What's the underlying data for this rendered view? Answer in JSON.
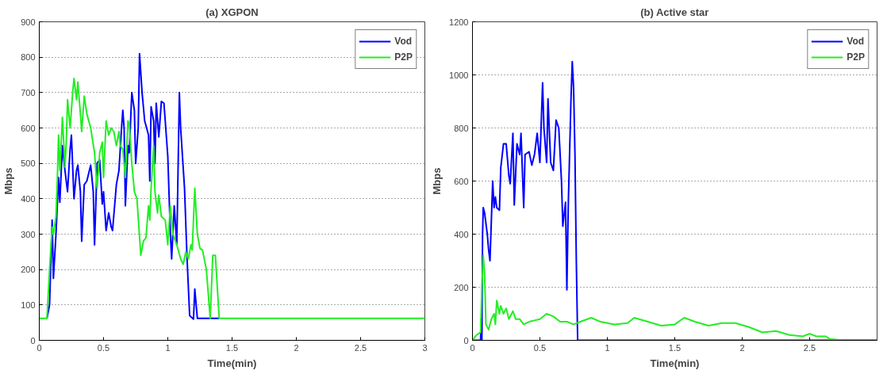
{
  "chart_data": [
    {
      "type": "line",
      "title": "(a) XGPON",
      "xlabel": "Time(min)",
      "ylabel": "Mbps",
      "xlim": [
        0,
        3
      ],
      "ylim": [
        0,
        900
      ],
      "xticks": [
        0,
        0.5,
        1,
        1.5,
        2,
        2.5,
        3
      ],
      "yticks": [
        0,
        100,
        200,
        300,
        400,
        500,
        600,
        700,
        800,
        900
      ],
      "grid": "y",
      "legend": "top right",
      "series": [
        {
          "name": "Vod",
          "color": "#0000ff",
          "x": [
            0.06,
            0.08,
            0.1,
            0.11,
            0.13,
            0.15,
            0.16,
            0.18,
            0.2,
            0.22,
            0.24,
            0.25,
            0.27,
            0.29,
            0.3,
            0.32,
            0.33,
            0.35,
            0.37,
            0.4,
            0.42,
            0.43,
            0.45,
            0.47,
            0.49,
            0.5,
            0.52,
            0.54,
            0.56,
            0.57,
            0.6,
            0.62,
            0.64,
            0.65,
            0.66,
            0.67,
            0.69,
            0.7,
            0.72,
            0.74,
            0.75,
            0.77,
            0.78,
            0.8,
            0.82,
            0.85,
            0.86,
            0.87,
            0.89,
            0.9,
            0.91,
            0.93,
            0.95,
            0.97,
            1.0,
            1.02,
            1.03,
            1.05,
            1.07,
            1.09,
            1.1,
            1.13,
            1.15,
            1.17,
            1.2,
            1.21,
            1.23,
            1.4
          ],
          "values": [
            62,
            100,
            340,
            175,
            300,
            460,
            390,
            550,
            480,
            420,
            540,
            580,
            400,
            480,
            495,
            420,
            280,
            440,
            450,
            495,
            420,
            270,
            500,
            510,
            385,
            420,
            310,
            360,
            320,
            310,
            440,
            480,
            600,
            650,
            600,
            380,
            550,
            530,
            700,
            650,
            500,
            600,
            810,
            700,
            620,
            580,
            450,
            660,
            620,
            500,
            670,
            575,
            675,
            670,
            520,
            300,
            230,
            380,
            270,
            700,
            600,
            430,
            230,
            70,
            60,
            145,
            62,
            62
          ]
        },
        {
          "name": "P2P",
          "color": "#22ee22",
          "x": [
            0,
            0.06,
            0.08,
            0.1,
            0.11,
            0.13,
            0.14,
            0.15,
            0.16,
            0.18,
            0.2,
            0.21,
            0.22,
            0.24,
            0.26,
            0.27,
            0.29,
            0.3,
            0.32,
            0.33,
            0.35,
            0.37,
            0.4,
            0.43,
            0.45,
            0.47,
            0.49,
            0.5,
            0.52,
            0.54,
            0.56,
            0.58,
            0.6,
            0.62,
            0.63,
            0.65,
            0.67,
            0.69,
            0.7,
            0.72,
            0.74,
            0.76,
            0.79,
            0.81,
            0.83,
            0.85,
            0.86,
            0.87,
            0.89,
            0.9,
            0.92,
            0.93,
            0.95,
            0.98,
            1.0,
            1.02,
            1.04,
            1.07,
            1.1,
            1.12,
            1.14,
            1.16,
            1.18,
            1.19,
            1.21,
            1.23,
            1.25,
            1.27,
            1.3,
            1.33,
            1.35,
            1.37,
            1.4,
            3
          ],
          "values": [
            62,
            62,
            200,
            320,
            300,
            350,
            450,
            580,
            480,
            630,
            490,
            560,
            680,
            600,
            700,
            740,
            680,
            730,
            640,
            590,
            690,
            640,
            600,
            530,
            430,
            530,
            560,
            460,
            620,
            580,
            600,
            590,
            550,
            590,
            550,
            540,
            460,
            620,
            610,
            500,
            420,
            400,
            240,
            280,
            290,
            380,
            340,
            430,
            550,
            420,
            360,
            410,
            350,
            340,
            270,
            380,
            300,
            270,
            230,
            215,
            250,
            230,
            270,
            255,
            430,
            300,
            260,
            255,
            200,
            62,
            240,
            240,
            62,
            62
          ]
        }
      ]
    },
    {
      "type": "line",
      "title": "(b) Active star",
      "xlabel": "Time(min)",
      "ylabel": "Mbps",
      "xlim": [
        0,
        3
      ],
      "ylim": [
        0,
        1200
      ],
      "xticks": [
        0,
        0.5,
        1,
        1.5,
        2,
        2.5
      ],
      "yticks": [
        0,
        200,
        400,
        600,
        800,
        1000,
        1200
      ],
      "grid": "y",
      "legend": "top right",
      "series": [
        {
          "name": "Vod",
          "color": "#0000ff",
          "x": [
            0,
            0.06,
            0.065,
            0.07,
            0.075,
            0.08,
            0.09,
            0.11,
            0.12,
            0.13,
            0.14,
            0.15,
            0.16,
            0.17,
            0.18,
            0.2,
            0.21,
            0.23,
            0.25,
            0.27,
            0.28,
            0.3,
            0.31,
            0.33,
            0.35,
            0.36,
            0.38,
            0.39,
            0.42,
            0.44,
            0.46,
            0.48,
            0.5,
            0.52,
            0.53,
            0.55,
            0.56,
            0.58,
            0.6,
            0.62,
            0.64,
            0.66,
            0.67,
            0.69,
            0.7,
            0.71,
            0.73,
            0.74,
            0.75,
            0.76,
            0.77,
            0.78,
            3
          ],
          "values": [
            0,
            0,
            80,
            0,
            400,
            500,
            480,
            400,
            340,
            300,
            450,
            600,
            500,
            540,
            500,
            490,
            650,
            740,
            740,
            620,
            590,
            780,
            510,
            740,
            700,
            780,
            500,
            700,
            710,
            660,
            700,
            780,
            670,
            970,
            800,
            670,
            910,
            670,
            640,
            830,
            800,
            600,
            430,
            520,
            190,
            500,
            900,
            1050,
            950,
            700,
            300,
            0,
            0
          ]
        },
        {
          "name": "P2P",
          "color": "#22ee22",
          "x": [
            0,
            0.03,
            0.06,
            0.07,
            0.08,
            0.09,
            0.1,
            0.12,
            0.14,
            0.16,
            0.17,
            0.18,
            0.2,
            0.21,
            0.23,
            0.25,
            0.27,
            0.3,
            0.32,
            0.35,
            0.38,
            0.42,
            0.46,
            0.5,
            0.55,
            0.6,
            0.65,
            0.7,
            0.75,
            0.8,
            0.88,
            0.95,
            1.05,
            1.15,
            1.2,
            1.3,
            1.4,
            1.5,
            1.57,
            1.65,
            1.75,
            1.85,
            1.95,
            2.05,
            2.15,
            2.25,
            2.35,
            2.45,
            2.5,
            2.55,
            2.62,
            2.65,
            2.75,
            3
          ],
          "values": [
            0,
            20,
            30,
            200,
            320,
            250,
            60,
            40,
            80,
            100,
            60,
            150,
            100,
            130,
            100,
            120,
            80,
            110,
            80,
            80,
            60,
            70,
            75,
            80,
            100,
            90,
            70,
            70,
            60,
            70,
            85,
            70,
            60,
            65,
            85,
            70,
            55,
            60,
            85,
            70,
            55,
            65,
            65,
            50,
            30,
            35,
            20,
            15,
            25,
            15,
            15,
            5,
            0,
            0
          ]
        }
      ]
    }
  ]
}
